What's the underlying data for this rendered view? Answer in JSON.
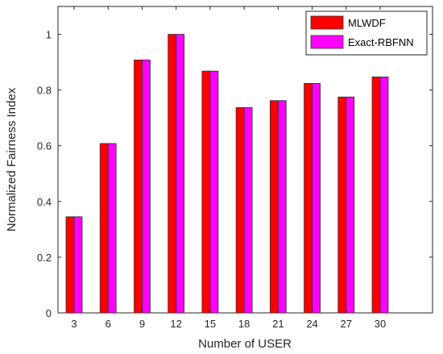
{
  "chart_data": {
    "type": "bar",
    "categories": [
      "3",
      "6",
      "9",
      "12",
      "15",
      "18",
      "21",
      "24",
      "27",
      "30"
    ],
    "series": [
      {
        "name": "MLWDF",
        "color": "#ff0000",
        "values": [
          0.345,
          0.608,
          0.908,
          1.0,
          0.868,
          0.737,
          0.762,
          0.824,
          0.775,
          0.847
        ]
      },
      {
        "name": "Exact-RBFNN",
        "color": "#ff00ff",
        "values": [
          0.345,
          0.608,
          0.908,
          1.0,
          0.868,
          0.737,
          0.762,
          0.824,
          0.775,
          0.847
        ]
      }
    ],
    "xlabel": "Number of USER",
    "ylabel": "Normalized Fairness Index",
    "ylim": [
      0,
      1.1
    ],
    "yticks": [
      "0",
      "0.2",
      "0.4",
      "0.6",
      "0.8",
      "1"
    ],
    "grid": false,
    "legend_position": "top-right"
  }
}
